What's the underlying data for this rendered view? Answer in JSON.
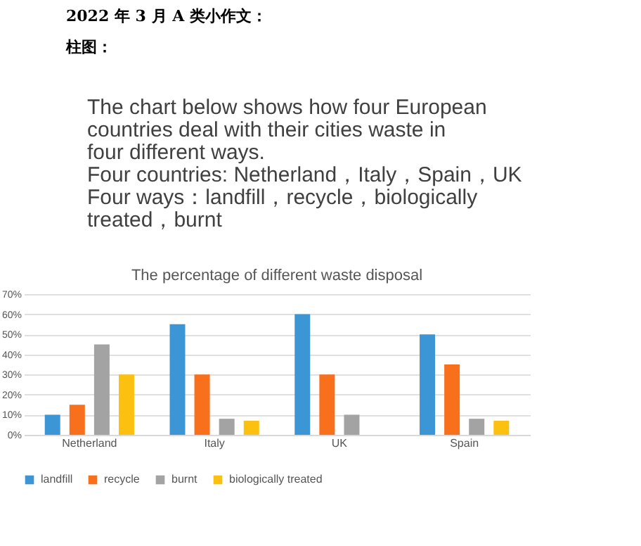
{
  "chart_data": {
    "type": "bar",
    "title": "The percentage of different waste disposal",
    "annotations": [
      "2022 年 3 月 A 类小作文：",
      "柱图：",
      "The chart below shows how four European countries deal with their cities waste in four different ways.",
      "Four countries: Netherland，Italy，Spain，UK",
      "Four ways：landfill，recycle，biologically treated，burnt"
    ],
    "categories": [
      "Netherland",
      "Italy",
      "UK",
      "Spain"
    ],
    "series": [
      {
        "name": "landfill",
        "color": "#3c96d6",
        "values": [
          10,
          55,
          60,
          50
        ]
      },
      {
        "name": "recycle",
        "color": "#f86f1c",
        "values": [
          15,
          30,
          30,
          35
        ]
      },
      {
        "name": "burnt",
        "color": "#a3a3a3",
        "values": [
          45,
          8,
          10,
          8
        ]
      },
      {
        "name": "biologically treated",
        "color": "#fcc010",
        "values": [
          30,
          7,
          0,
          7
        ]
      }
    ],
    "ylim": [
      0,
      70
    ],
    "yticks": [
      {
        "value": 0,
        "label": "0%"
      },
      {
        "value": 10,
        "label": "10%"
      },
      {
        "value": 20,
        "label": "20%"
      },
      {
        "value": 30,
        "label": "30%"
      },
      {
        "value": 40,
        "label": "40%"
      },
      {
        "value": 50,
        "label": "50%"
      },
      {
        "value": 60,
        "label": "60%"
      },
      {
        "value": 70,
        "label": "70%"
      }
    ],
    "grid": "y",
    "legend": "bottom"
  }
}
